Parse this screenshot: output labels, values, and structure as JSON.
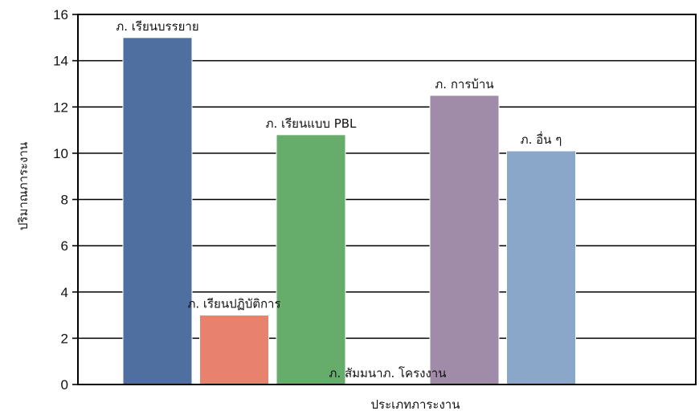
{
  "chart_data": {
    "type": "bar",
    "xlabel": "ประเภทภาระงาน",
    "ylabel": "ปริมาณภาระงาน",
    "ylim": [
      0,
      16
    ],
    "yticks": [
      0,
      2,
      4,
      6,
      8,
      10,
      12,
      14,
      16
    ],
    "grid": true,
    "legend": "none",
    "categories": [
      "ภ. เรียนบรรยาย",
      "ภ. เรียนปฏิบัติการ",
      "ภ. เรียนแบบ PBL",
      "ภ. สัมมนาภ. โครงงาน",
      "ภ. การบ้าน",
      "ภ. อื่น ๆ"
    ],
    "values": [
      15,
      3,
      10.8,
      0,
      12.5,
      10.1
    ],
    "colors": [
      "#4f6fa0",
      "#e8826e",
      "#66ad6c",
      "#6aa56e",
      "#a08ba8",
      "#8aa6c8"
    ]
  }
}
